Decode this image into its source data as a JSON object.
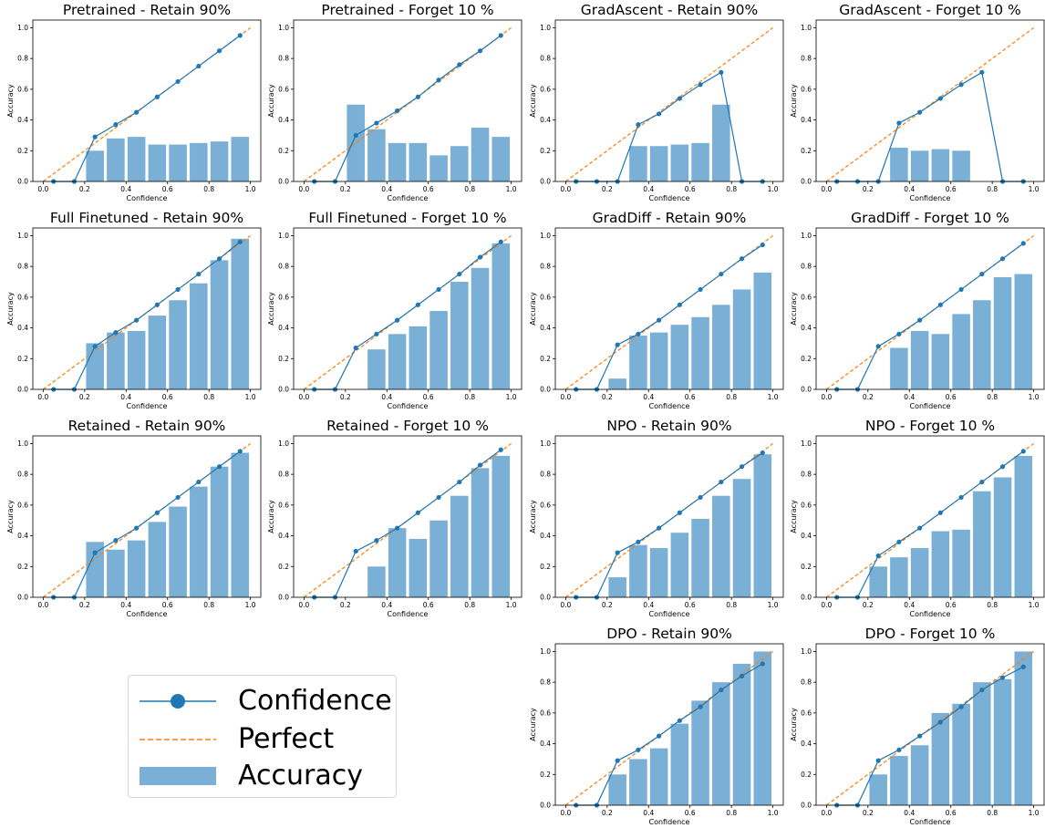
{
  "figure": {
    "legend": {
      "confidence": "Confidence",
      "perfect": "Perfect",
      "accuracy": "Accuracy"
    },
    "colors": {
      "confidence_line": "#1f77b4",
      "perfect_line": "#ff7f0e",
      "accuracy_bar": "#7aafd6"
    }
  },
  "chart_data": [
    {
      "type": "bar",
      "title": "Pretrained - Retain 90%",
      "xlabel": "Confidence",
      "ylabel": "Accuracy",
      "xlim": [
        0,
        1
      ],
      "ylim": [
        0,
        1
      ],
      "x_ticks": [
        "0.0",
        "0.2",
        "0.4",
        "0.6",
        "0.8",
        "1.0"
      ],
      "y_ticks": [
        "0.0",
        "0.2",
        "0.4",
        "0.6",
        "0.8",
        "1.0"
      ],
      "series": [
        {
          "name": "Accuracy",
          "x": [
            0.25,
            0.35,
            0.45,
            0.55,
            0.65,
            0.75,
            0.85,
            0.95
          ],
          "values": [
            0.2,
            0.28,
            0.29,
            0.24,
            0.24,
            0.25,
            0.26,
            0.29
          ]
        },
        {
          "name": "Confidence",
          "x": [
            0.05,
            0.15,
            0.25,
            0.35,
            0.45,
            0.55,
            0.65,
            0.75,
            0.85,
            0.95
          ],
          "values": [
            0,
            0,
            0.29,
            0.37,
            0.45,
            0.55,
            0.65,
            0.75,
            0.85,
            0.95
          ]
        }
      ]
    },
    {
      "type": "bar",
      "title": "Pretrained - Forget 10 %",
      "xlabel": "Confidence",
      "ylabel": "Accuracy",
      "xlim": [
        0,
        1
      ],
      "ylim": [
        0,
        1
      ],
      "x_ticks": [
        "0.0",
        "0.2",
        "0.4",
        "0.6",
        "0.8",
        "1.0"
      ],
      "y_ticks": [
        "0.0",
        "0.2",
        "0.4",
        "0.6",
        "0.8",
        "1.0"
      ],
      "series": [
        {
          "name": "Accuracy",
          "x": [
            0.25,
            0.35,
            0.45,
            0.55,
            0.65,
            0.75,
            0.85,
            0.95
          ],
          "values": [
            0.5,
            0.34,
            0.25,
            0.25,
            0.17,
            0.23,
            0.35,
            0.29
          ]
        },
        {
          "name": "Confidence",
          "x": [
            0.05,
            0.15,
            0.25,
            0.35,
            0.45,
            0.55,
            0.65,
            0.75,
            0.85,
            0.95
          ],
          "values": [
            0,
            0,
            0.3,
            0.38,
            0.46,
            0.55,
            0.66,
            0.76,
            0.85,
            0.95
          ]
        }
      ]
    },
    {
      "type": "bar",
      "title": "GradAscent - Retain 90%",
      "xlabel": "Confidence",
      "ylabel": "Accuracy",
      "xlim": [
        0,
        1
      ],
      "ylim": [
        0,
        1
      ],
      "x_ticks": [
        "0.0",
        "0.2",
        "0.4",
        "0.6",
        "0.8",
        "1.0"
      ],
      "y_ticks": [
        "0.0",
        "0.2",
        "0.4",
        "0.6",
        "0.8",
        "1.0"
      ],
      "series": [
        {
          "name": "Accuracy",
          "x": [
            0.35,
            0.45,
            0.55,
            0.65,
            0.75
          ],
          "values": [
            0.23,
            0.23,
            0.24,
            0.25,
            0.5
          ]
        },
        {
          "name": "Confidence",
          "x": [
            0.05,
            0.15,
            0.25,
            0.35,
            0.45,
            0.55,
            0.65,
            0.75,
            0.85,
            0.95
          ],
          "values": [
            0,
            0,
            0,
            0.37,
            0.44,
            0.54,
            0.63,
            0.71,
            0,
            0
          ]
        }
      ]
    },
    {
      "type": "bar",
      "title": "GradAscent - Forget 10 %",
      "xlabel": "Confidence",
      "ylabel": "Accuracy",
      "xlim": [
        0,
        1
      ],
      "ylim": [
        0,
        1
      ],
      "x_ticks": [
        "0.0",
        "0.2",
        "0.4",
        "0.6",
        "0.8",
        "1.0"
      ],
      "y_ticks": [
        "0.0",
        "0.2",
        "0.4",
        "0.6",
        "0.8",
        "1.0"
      ],
      "series": [
        {
          "name": "Accuracy",
          "x": [
            0.35,
            0.45,
            0.55,
            0.65
          ],
          "values": [
            0.22,
            0.2,
            0.21,
            0.2
          ]
        },
        {
          "name": "Confidence",
          "x": [
            0.05,
            0.15,
            0.25,
            0.35,
            0.45,
            0.55,
            0.65,
            0.75,
            0.85,
            0.95
          ],
          "values": [
            0,
            0,
            0,
            0.38,
            0.45,
            0.54,
            0.63,
            0.71,
            0,
            0
          ]
        }
      ]
    },
    {
      "type": "bar",
      "title": "Full Finetuned - Retain 90%",
      "xlabel": "Confidence",
      "ylabel": "Accuracy",
      "xlim": [
        0,
        1
      ],
      "ylim": [
        0,
        1
      ],
      "x_ticks": [
        "0.0",
        "0.2",
        "0.4",
        "0.6",
        "0.8",
        "1.0"
      ],
      "y_ticks": [
        "0.0",
        "0.2",
        "0.4",
        "0.6",
        "0.8",
        "1.0"
      ],
      "series": [
        {
          "name": "Accuracy",
          "x": [
            0.25,
            0.35,
            0.45,
            0.55,
            0.65,
            0.75,
            0.85,
            0.95
          ],
          "values": [
            0.3,
            0.37,
            0.38,
            0.48,
            0.58,
            0.69,
            0.84,
            0.98
          ]
        },
        {
          "name": "Confidence",
          "x": [
            0.05,
            0.15,
            0.25,
            0.35,
            0.45,
            0.55,
            0.65,
            0.75,
            0.85,
            0.95
          ],
          "values": [
            0,
            0,
            0.28,
            0.37,
            0.45,
            0.55,
            0.65,
            0.75,
            0.85,
            0.96
          ]
        }
      ]
    },
    {
      "type": "bar",
      "title": "Full Finetuned - Forget 10 %",
      "xlabel": "Confidence",
      "ylabel": "Accuracy",
      "xlim": [
        0,
        1
      ],
      "ylim": [
        0,
        1
      ],
      "x_ticks": [
        "0.0",
        "0.2",
        "0.4",
        "0.6",
        "0.8",
        "1.0"
      ],
      "y_ticks": [
        "0.0",
        "0.2",
        "0.4",
        "0.6",
        "0.8",
        "1.0"
      ],
      "series": [
        {
          "name": "Accuracy",
          "x": [
            0.35,
            0.45,
            0.55,
            0.65,
            0.75,
            0.85,
            0.95
          ],
          "values": [
            0.26,
            0.36,
            0.41,
            0.51,
            0.7,
            0.79,
            0.95
          ]
        },
        {
          "name": "Confidence",
          "x": [
            0.05,
            0.15,
            0.25,
            0.35,
            0.45,
            0.55,
            0.65,
            0.75,
            0.85,
            0.95
          ],
          "values": [
            0,
            0,
            0.27,
            0.36,
            0.45,
            0.55,
            0.65,
            0.75,
            0.86,
            0.96
          ]
        }
      ]
    },
    {
      "type": "bar",
      "title": "GradDiff - Retain 90%",
      "xlabel": "Confidence",
      "ylabel": "Accuracy",
      "xlim": [
        0,
        1
      ],
      "ylim": [
        0,
        1
      ],
      "x_ticks": [
        "0.0",
        "0.2",
        "0.4",
        "0.6",
        "0.8",
        "1.0"
      ],
      "y_ticks": [
        "0.0",
        "0.2",
        "0.4",
        "0.6",
        "0.8",
        "1.0"
      ],
      "series": [
        {
          "name": "Accuracy",
          "x": [
            0.25,
            0.35,
            0.45,
            0.55,
            0.65,
            0.75,
            0.85,
            0.95
          ],
          "values": [
            0.07,
            0.35,
            0.37,
            0.42,
            0.47,
            0.55,
            0.65,
            0.76
          ]
        },
        {
          "name": "Confidence",
          "x": [
            0.05,
            0.15,
            0.25,
            0.35,
            0.45,
            0.55,
            0.65,
            0.75,
            0.85,
            0.95
          ],
          "values": [
            0,
            0,
            0.29,
            0.36,
            0.45,
            0.55,
            0.65,
            0.75,
            0.85,
            0.94
          ]
        }
      ]
    },
    {
      "type": "bar",
      "title": "GradDiff - Forget 10 %",
      "xlabel": "Confidence",
      "ylabel": "Accuracy",
      "xlim": [
        0,
        1
      ],
      "ylim": [
        0,
        1
      ],
      "x_ticks": [
        "0.0",
        "0.2",
        "0.4",
        "0.6",
        "0.8",
        "1.0"
      ],
      "y_ticks": [
        "0.0",
        "0.2",
        "0.4",
        "0.6",
        "0.8",
        "1.0"
      ],
      "series": [
        {
          "name": "Accuracy",
          "x": [
            0.35,
            0.45,
            0.55,
            0.65,
            0.75,
            0.85,
            0.95
          ],
          "values": [
            0.27,
            0.38,
            0.36,
            0.49,
            0.58,
            0.73,
            0.75
          ]
        },
        {
          "name": "Confidence",
          "x": [
            0.05,
            0.15,
            0.25,
            0.35,
            0.45,
            0.55,
            0.65,
            0.75,
            0.85,
            0.95
          ],
          "values": [
            0,
            0,
            0.28,
            0.36,
            0.45,
            0.55,
            0.65,
            0.75,
            0.85,
            0.95
          ]
        }
      ]
    },
    {
      "type": "bar",
      "title": "Retained - Retain 90%",
      "xlabel": "Confidence",
      "ylabel": "Accuracy",
      "xlim": [
        0,
        1
      ],
      "ylim": [
        0,
        1
      ],
      "x_ticks": [
        "0.0",
        "0.2",
        "0.4",
        "0.6",
        "0.8",
        "1.0"
      ],
      "y_ticks": [
        "0.0",
        "0.2",
        "0.4",
        "0.6",
        "0.8",
        "1.0"
      ],
      "series": [
        {
          "name": "Accuracy",
          "x": [
            0.25,
            0.35,
            0.45,
            0.55,
            0.65,
            0.75,
            0.85,
            0.95
          ],
          "values": [
            0.36,
            0.31,
            0.37,
            0.49,
            0.59,
            0.72,
            0.85,
            0.94
          ]
        },
        {
          "name": "Confidence",
          "x": [
            0.05,
            0.15,
            0.25,
            0.35,
            0.45,
            0.55,
            0.65,
            0.75,
            0.85,
            0.95
          ],
          "values": [
            0,
            0,
            0.29,
            0.37,
            0.45,
            0.55,
            0.65,
            0.75,
            0.85,
            0.95
          ]
        }
      ]
    },
    {
      "type": "bar",
      "title": "Retained - Forget 10 %",
      "xlabel": "Confidence",
      "ylabel": "Accuracy",
      "xlim": [
        0,
        1
      ],
      "ylim": [
        0,
        1
      ],
      "x_ticks": [
        "0.0",
        "0.2",
        "0.4",
        "0.6",
        "0.8",
        "1.0"
      ],
      "y_ticks": [
        "0.0",
        "0.2",
        "0.4",
        "0.6",
        "0.8",
        "1.0"
      ],
      "series": [
        {
          "name": "Accuracy",
          "x": [
            0.35,
            0.45,
            0.55,
            0.65,
            0.75,
            0.85,
            0.95
          ],
          "values": [
            0.2,
            0.45,
            0.38,
            0.5,
            0.66,
            0.84,
            0.92
          ]
        },
        {
          "name": "Confidence",
          "x": [
            0.05,
            0.15,
            0.25,
            0.35,
            0.45,
            0.55,
            0.65,
            0.75,
            0.85,
            0.95
          ],
          "values": [
            0,
            0,
            0.3,
            0.37,
            0.45,
            0.55,
            0.65,
            0.75,
            0.86,
            0.96
          ]
        }
      ]
    },
    {
      "type": "bar",
      "title": "NPO - Retain 90%",
      "xlabel": "Confidence",
      "ylabel": "Accuracy",
      "xlim": [
        0,
        1
      ],
      "ylim": [
        0,
        1
      ],
      "x_ticks": [
        "0.0",
        "0.2",
        "0.4",
        "0.6",
        "0.8",
        "1.0"
      ],
      "y_ticks": [
        "0.0",
        "0.2",
        "0.4",
        "0.6",
        "0.8",
        "1.0"
      ],
      "series": [
        {
          "name": "Accuracy",
          "x": [
            0.25,
            0.35,
            0.45,
            0.55,
            0.65,
            0.75,
            0.85,
            0.95
          ],
          "values": [
            0.13,
            0.34,
            0.32,
            0.42,
            0.51,
            0.66,
            0.77,
            0.93
          ]
        },
        {
          "name": "Confidence",
          "x": [
            0.05,
            0.15,
            0.25,
            0.35,
            0.45,
            0.55,
            0.65,
            0.75,
            0.85,
            0.95
          ],
          "values": [
            0,
            0,
            0.29,
            0.36,
            0.45,
            0.55,
            0.65,
            0.75,
            0.85,
            0.94
          ]
        }
      ]
    },
    {
      "type": "bar",
      "title": "NPO - Forget 10 %",
      "xlabel": "Confidence",
      "ylabel": "Accuracy",
      "xlim": [
        0,
        1
      ],
      "ylim": [
        0,
        1
      ],
      "x_ticks": [
        "0.0",
        "0.2",
        "0.4",
        "0.6",
        "0.8",
        "1.0"
      ],
      "y_ticks": [
        "0.0",
        "0.2",
        "0.4",
        "0.6",
        "0.8",
        "1.0"
      ],
      "series": [
        {
          "name": "Accuracy",
          "x": [
            0.25,
            0.35,
            0.45,
            0.55,
            0.65,
            0.75,
            0.85,
            0.95
          ],
          "values": [
            0.2,
            0.26,
            0.32,
            0.43,
            0.44,
            0.69,
            0.78,
            0.92
          ]
        },
        {
          "name": "Confidence",
          "x": [
            0.05,
            0.15,
            0.25,
            0.35,
            0.45,
            0.55,
            0.65,
            0.75,
            0.85,
            0.95
          ],
          "values": [
            0,
            0,
            0.27,
            0.36,
            0.45,
            0.55,
            0.65,
            0.75,
            0.85,
            0.95
          ]
        }
      ]
    },
    {
      "type": "bar",
      "title": "DPO - Retain 90%",
      "xlabel": "Confidence",
      "ylabel": "Accuracy",
      "xlim": [
        0,
        1
      ],
      "ylim": [
        0,
        1
      ],
      "x_ticks": [
        "0.0",
        "0.2",
        "0.4",
        "0.6",
        "0.8",
        "1.0"
      ],
      "y_ticks": [
        "0.0",
        "0.2",
        "0.4",
        "0.6",
        "0.8",
        "1.0"
      ],
      "series": [
        {
          "name": "Accuracy",
          "x": [
            0.25,
            0.35,
            0.45,
            0.55,
            0.65,
            0.75,
            0.85,
            0.95
          ],
          "values": [
            0.2,
            0.3,
            0.37,
            0.53,
            0.68,
            0.8,
            0.92,
            1.0
          ]
        },
        {
          "name": "Confidence",
          "x": [
            0.05,
            0.15,
            0.25,
            0.35,
            0.45,
            0.55,
            0.65,
            0.75,
            0.85,
            0.95
          ],
          "values": [
            0,
            0,
            0.29,
            0.36,
            0.45,
            0.55,
            0.64,
            0.75,
            0.84,
            0.92
          ]
        }
      ]
    },
    {
      "type": "bar",
      "title": "DPO - Forget 10 %",
      "xlabel": "Confidence",
      "ylabel": "Accuracy",
      "xlim": [
        0,
        1
      ],
      "ylim": [
        0,
        1
      ],
      "x_ticks": [
        "0.0",
        "0.2",
        "0.4",
        "0.6",
        "0.8",
        "1.0"
      ],
      "y_ticks": [
        "0.0",
        "0.2",
        "0.4",
        "0.6",
        "0.8",
        "1.0"
      ],
      "series": [
        {
          "name": "Accuracy",
          "x": [
            0.25,
            0.35,
            0.45,
            0.55,
            0.65,
            0.75,
            0.85,
            0.95
          ],
          "values": [
            0.2,
            0.32,
            0.39,
            0.6,
            0.66,
            0.8,
            0.82,
            1.0
          ]
        },
        {
          "name": "Confidence",
          "x": [
            0.05,
            0.15,
            0.25,
            0.35,
            0.45,
            0.55,
            0.65,
            0.75,
            0.85,
            0.95
          ],
          "values": [
            0,
            0,
            0.29,
            0.36,
            0.45,
            0.54,
            0.64,
            0.75,
            0.83,
            0.9
          ]
        }
      ]
    }
  ]
}
